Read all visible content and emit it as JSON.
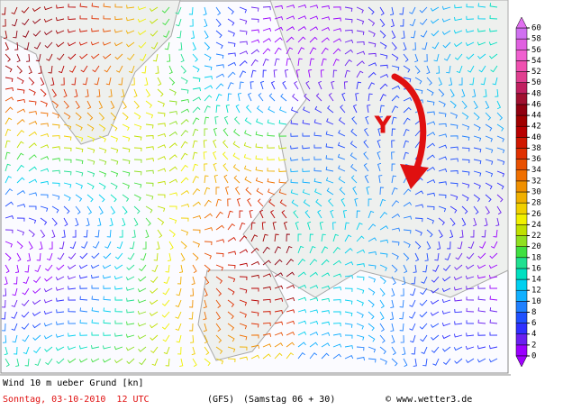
{
  "title": "Wind 10 m ueber Grund [kn]",
  "date": "Sonntag, 03-10-2010  12 UTC",
  "model": "(GFS)",
  "run": "(Samstag 06 + 30)",
  "credit": "© www.wetter3.de",
  "annotation": "Y",
  "colorbar": {
    "ticks": [
      0,
      2,
      4,
      6,
      8,
      10,
      12,
      14,
      16,
      18,
      20,
      22,
      24,
      26,
      28,
      30,
      32,
      34,
      36,
      38,
      40,
      42,
      44,
      46,
      48,
      50,
      52,
      54,
      56,
      58,
      60
    ],
    "colors": [
      "#9a00ff",
      "#6a20f0",
      "#3030ff",
      "#2050ff",
      "#2080ff",
      "#10b0ff",
      "#00d0f0",
      "#00e0c0",
      "#20e090",
      "#40e040",
      "#90e020",
      "#c0e000",
      "#f0f000",
      "#f0d000",
      "#f0b000",
      "#f09000",
      "#f07000",
      "#e85000",
      "#e03000",
      "#d01800",
      "#b80000",
      "#a00000",
      "#900010",
      "#a01030",
      "#c02060",
      "#e04090",
      "#f050b0",
      "#f060d0",
      "#e060e0",
      "#d070f0"
    ],
    "under_color": "#a000ff",
    "over_color": "#e070f0"
  }
}
